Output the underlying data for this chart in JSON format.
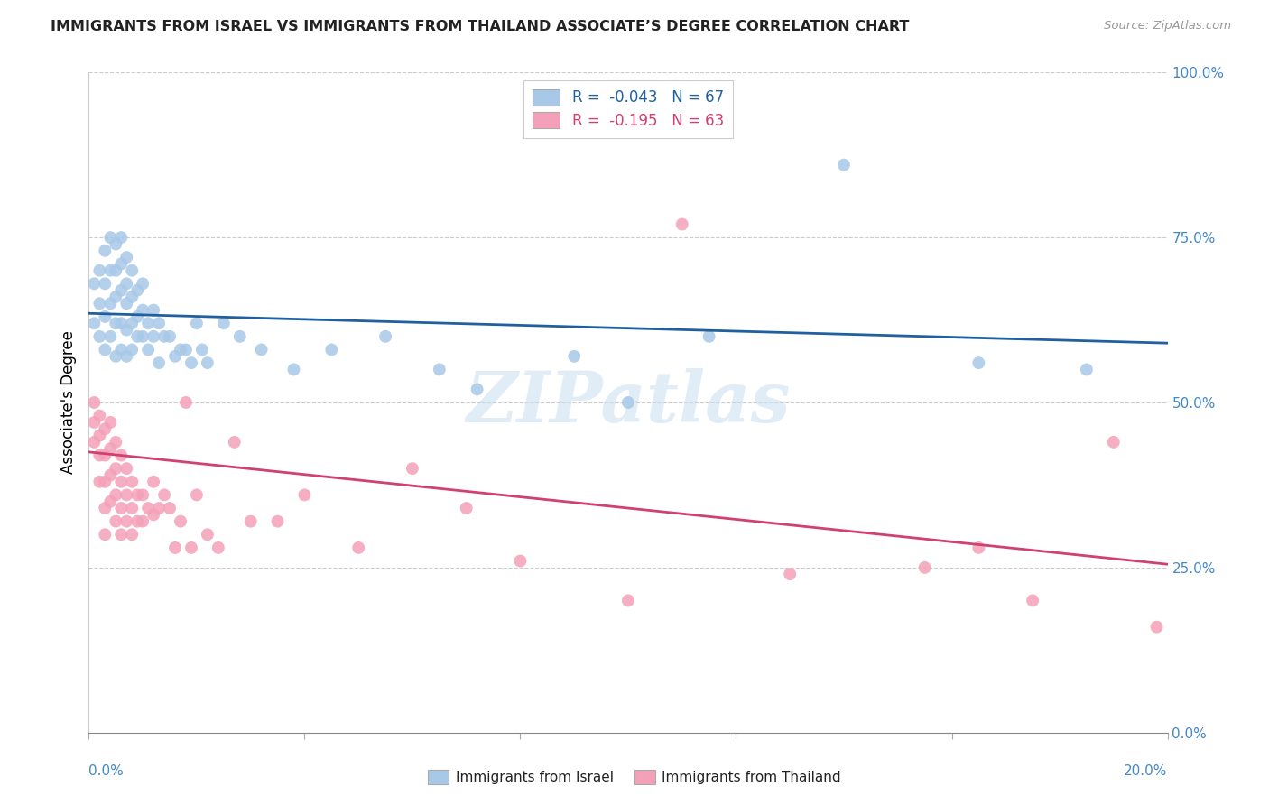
{
  "title": "IMMIGRANTS FROM ISRAEL VS IMMIGRANTS FROM THAILAND ASSOCIATE’S DEGREE CORRELATION CHART",
  "source": "Source: ZipAtlas.com",
  "ylabel": "Associate's Degree",
  "right_yticks": [
    0.0,
    0.25,
    0.5,
    0.75,
    1.0
  ],
  "right_yticklabels": [
    "0.0%",
    "25.0%",
    "50.0%",
    "75.0%",
    "100.0%"
  ],
  "israel_R": -0.043,
  "israel_N": 67,
  "thailand_R": -0.195,
  "thailand_N": 63,
  "israel_color": "#a8c8e8",
  "thailand_color": "#f4a0b8",
  "israel_line_color": "#2060a0",
  "thailand_line_color": "#d04070",
  "background_color": "#ffffff",
  "watermark": "ZIPatlas",
  "israel_x": [
    0.001,
    0.001,
    0.002,
    0.002,
    0.002,
    0.003,
    0.003,
    0.003,
    0.003,
    0.004,
    0.004,
    0.004,
    0.004,
    0.005,
    0.005,
    0.005,
    0.005,
    0.005,
    0.006,
    0.006,
    0.006,
    0.006,
    0.006,
    0.007,
    0.007,
    0.007,
    0.007,
    0.007,
    0.008,
    0.008,
    0.008,
    0.008,
    0.009,
    0.009,
    0.009,
    0.01,
    0.01,
    0.01,
    0.011,
    0.011,
    0.012,
    0.012,
    0.013,
    0.013,
    0.014,
    0.015,
    0.016,
    0.017,
    0.018,
    0.019,
    0.02,
    0.021,
    0.022,
    0.025,
    0.028,
    0.032,
    0.038,
    0.045,
    0.055,
    0.065,
    0.072,
    0.09,
    0.1,
    0.115,
    0.14,
    0.165,
    0.185
  ],
  "israel_y": [
    0.62,
    0.68,
    0.6,
    0.65,
    0.7,
    0.58,
    0.63,
    0.68,
    0.73,
    0.6,
    0.65,
    0.7,
    0.75,
    0.57,
    0.62,
    0.66,
    0.7,
    0.74,
    0.58,
    0.62,
    0.67,
    0.71,
    0.75,
    0.57,
    0.61,
    0.65,
    0.68,
    0.72,
    0.58,
    0.62,
    0.66,
    0.7,
    0.6,
    0.63,
    0.67,
    0.6,
    0.64,
    0.68,
    0.58,
    0.62,
    0.6,
    0.64,
    0.56,
    0.62,
    0.6,
    0.6,
    0.57,
    0.58,
    0.58,
    0.56,
    0.62,
    0.58,
    0.56,
    0.62,
    0.6,
    0.58,
    0.55,
    0.58,
    0.6,
    0.55,
    0.52,
    0.57,
    0.5,
    0.6,
    0.86,
    0.56,
    0.55
  ],
  "thailand_x": [
    0.001,
    0.001,
    0.001,
    0.002,
    0.002,
    0.002,
    0.002,
    0.003,
    0.003,
    0.003,
    0.003,
    0.003,
    0.004,
    0.004,
    0.004,
    0.004,
    0.005,
    0.005,
    0.005,
    0.005,
    0.006,
    0.006,
    0.006,
    0.006,
    0.007,
    0.007,
    0.007,
    0.008,
    0.008,
    0.008,
    0.009,
    0.009,
    0.01,
    0.01,
    0.011,
    0.012,
    0.012,
    0.013,
    0.014,
    0.015,
    0.016,
    0.017,
    0.018,
    0.019,
    0.02,
    0.022,
    0.024,
    0.027,
    0.03,
    0.035,
    0.04,
    0.05,
    0.06,
    0.07,
    0.08,
    0.1,
    0.11,
    0.13,
    0.155,
    0.165,
    0.175,
    0.19,
    0.198
  ],
  "thailand_y": [
    0.5,
    0.47,
    0.44,
    0.48,
    0.45,
    0.42,
    0.38,
    0.46,
    0.42,
    0.38,
    0.34,
    0.3,
    0.47,
    0.43,
    0.39,
    0.35,
    0.44,
    0.4,
    0.36,
    0.32,
    0.42,
    0.38,
    0.34,
    0.3,
    0.4,
    0.36,
    0.32,
    0.38,
    0.34,
    0.3,
    0.36,
    0.32,
    0.36,
    0.32,
    0.34,
    0.38,
    0.33,
    0.34,
    0.36,
    0.34,
    0.28,
    0.32,
    0.5,
    0.28,
    0.36,
    0.3,
    0.28,
    0.44,
    0.32,
    0.32,
    0.36,
    0.28,
    0.4,
    0.34,
    0.26,
    0.2,
    0.77,
    0.24,
    0.25,
    0.28,
    0.2,
    0.44,
    0.16
  ],
  "xlim": [
    0.0,
    0.2
  ],
  "ylim": [
    0.0,
    1.0
  ],
  "israel_trend_x0": 0.0,
  "israel_trend_y0": 0.635,
  "israel_trend_x1": 0.2,
  "israel_trend_y1": 0.59,
  "thailand_trend_x0": 0.0,
  "thailand_trend_y0": 0.425,
  "thailand_trend_x1": 0.2,
  "thailand_trend_y1": 0.255
}
